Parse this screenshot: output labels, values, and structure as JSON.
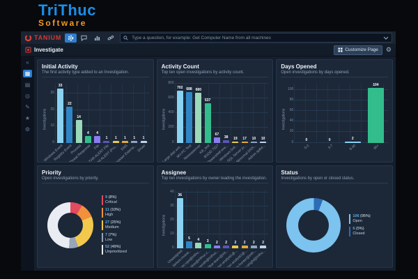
{
  "branding": {
    "line1": "TriThuc",
    "line2": "Software"
  },
  "topbar": {
    "brand": "TANIUM",
    "nav_icons": [
      "gear-icon",
      "chat-icon",
      "bar-chart-icon",
      "link-icon"
    ],
    "search_placeholder": "Type a question, for example: Get Computer Name from all machines"
  },
  "page_header": {
    "title": "Investigate",
    "customize_button": "Customize Page"
  },
  "sidebar": {
    "items": [
      {
        "name": "collapse-icon",
        "glyph": "«",
        "active": false
      },
      {
        "name": "modules-icon",
        "glyph": "▦",
        "active": true
      },
      {
        "name": "dashboards-icon",
        "glyph": "▤",
        "active": false
      },
      {
        "name": "history-icon",
        "glyph": "◎",
        "active": false
      },
      {
        "name": "reports-icon",
        "glyph": "✎",
        "active": false
      },
      {
        "name": "favorites-icon",
        "glyph": "★",
        "active": false
      },
      {
        "name": "settings-icon",
        "glyph": "⚙",
        "active": false
      }
    ]
  },
  "chart_data": [
    {
      "type": "bar",
      "title": "Initial Activity",
      "subtitle": "The first activity type added to an Investigation.",
      "ylabel": "Investigations",
      "yticks": [
        0,
        10,
        20,
        30
      ],
      "ylim": [
        0,
        36
      ],
      "categories": [
        "Windows Event",
        "Registry Event",
        "Process",
        "Threat Response",
        "File",
        "THR ALERT File",
        "Intel ALERT (Pro...",
        "DNS",
        "Browser Extensi...",
        "Driver"
      ],
      "values": [
        33,
        22,
        14,
        4,
        4,
        1,
        1,
        1,
        1,
        1
      ],
      "colors": [
        "#8ad2f2",
        "#2f86c6",
        "#9bd9bb",
        "#33bd8d",
        "#8a7cf0",
        "#5b55b4",
        "#e8c94e",
        "#e2a83b",
        "#8ea6c0",
        "#bfd4ea"
      ]
    },
    {
      "type": "bar",
      "title": "Activity Count",
      "subtitle": "Top ten open investigations by activity count.",
      "ylabel": "Investigations",
      "yticks": [
        0,
        200,
        400,
        600,
        800
      ],
      "ylim": [
        0,
        800
      ],
      "categories": [
        "Large disk writ...",
        "MV-PC Test",
        "Nessusserver",
        "KB_test",
        "BSOD 7327",
        "Powershell exe...",
        "Windows Def...",
        "SQL Server jo...",
        "Abnormal DNS...",
        "Admin spike..."
      ],
      "values": [
        702,
        688,
        680,
        537,
        67,
        38,
        19,
        17,
        10,
        10
      ],
      "colors": [
        "#8ad2f2",
        "#2f86c6",
        "#9bd9bb",
        "#33bd8d",
        "#8a7cf0",
        "#5b55b4",
        "#e8c94e",
        "#e2a83b",
        "#8ea6c0",
        "#bfd4ea"
      ]
    },
    {
      "type": "bar",
      "title": "Days Opened",
      "subtitle": "Open investigations by days opened.",
      "ylabel": "Investigations",
      "yticks": [
        0,
        20,
        40,
        60,
        80,
        100
      ],
      "ylim": [
        0,
        112
      ],
      "categories": [
        "0-2",
        "3-7",
        "8-30",
        "30+"
      ],
      "values": [
        0,
        0,
        2,
        104
      ],
      "colors": [
        "#8ad2f2",
        "#2f86c6",
        "#8ad2f2",
        "#33bd8d"
      ]
    },
    {
      "type": "donut",
      "title": "Priority",
      "subtitle": "Open investigations by priority.",
      "from_deg": 0,
      "slices": [
        {
          "label": "Critical",
          "value": 9,
          "pct": "(8%)",
          "color": "#e34b5f"
        },
        {
          "label": "High",
          "value": 11,
          "pct": "(10%)",
          "color": "#f2903c"
        },
        {
          "label": "Medium",
          "value": 27,
          "pct": "(25%)",
          "color": "#f2c94c"
        },
        {
          "label": "Low",
          "value": 7,
          "pct": "(7%)",
          "color": "#97a5b8"
        },
        {
          "label": "Unprioritized",
          "value": 52,
          "pct": "(49%)",
          "color": "#e9edf3"
        }
      ]
    },
    {
      "type": "bar",
      "title": "Assignee",
      "subtitle": "Top ten investigations by owner leading the investigation.",
      "ylabel": "Investigations",
      "yticks": [
        0,
        10,
        20,
        30,
        40
      ],
      "ylim": [
        0,
        42
      ],
      "categories": [
        "Unassigned",
        "tanium-invest...",
        "sec-ops@trithu...",
        "jdoe@trithuc.c...",
        "asmith@trithuc...",
        "blue-team@trit...",
        "soc-analyst1@...",
        "soc-analyst2@...",
        "m.hunter@trith...",
        "j.wright@trithu..."
      ],
      "values": [
        36,
        5,
        4,
        3,
        2,
        2,
        2,
        2,
        2,
        2
      ],
      "colors": [
        "#8ad2f2",
        "#2f86c6",
        "#9bd9bb",
        "#33bd8d",
        "#8a7cf0",
        "#5b55b4",
        "#e8c94e",
        "#e2a83b",
        "#8ea6c0",
        "#bfd4ea"
      ]
    },
    {
      "type": "donut",
      "title": "Status",
      "subtitle": "Investigations by open or closed status.",
      "from_deg": 20,
      "slices": [
        {
          "label": "Open",
          "value": 106,
          "pct": "(95%)",
          "color": "#7cc3ef"
        },
        {
          "label": "Closed",
          "value": 6,
          "pct": "(5%)",
          "color": "#2d6db5"
        }
      ]
    }
  ]
}
